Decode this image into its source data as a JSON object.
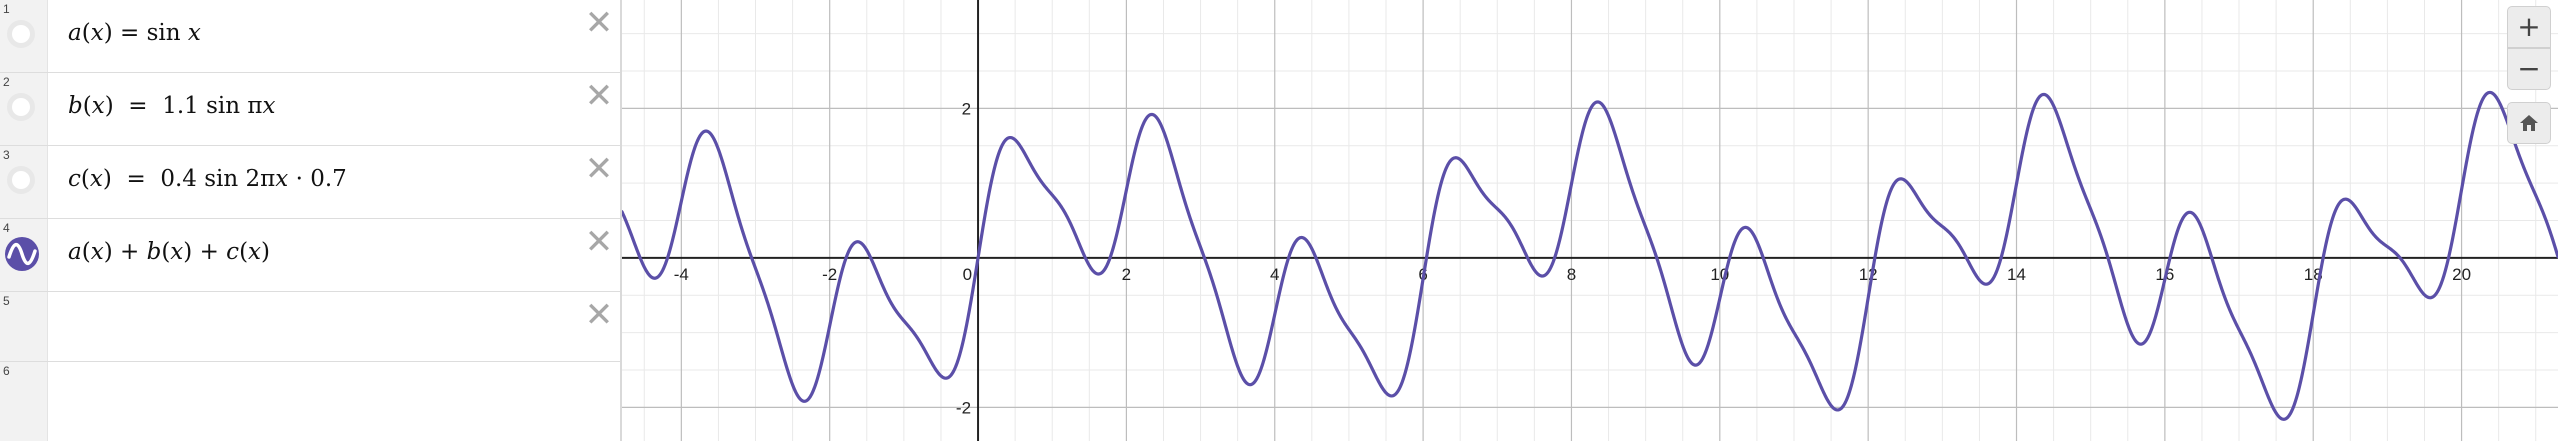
{
  "expressions": [
    {
      "index": "1",
      "a": "a",
      "b": "(",
      "c": "x",
      "d": ")",
      "e": " = sin ",
      "f": "x"
    },
    {
      "index": "2",
      "a": "b",
      "b": "(",
      "c": "x",
      "d": ")",
      "e": "  =  1.1 sin π",
      "f": "x"
    },
    {
      "index": "3",
      "a": "c",
      "b": "(",
      "c": "x",
      "d": ")",
      "e": "  =  0.4 sin 2π",
      "f": "x",
      "g": " · 0.7"
    },
    {
      "index": "4",
      "parts": [
        "a",
        "(",
        "x",
        ")",
        " + ",
        "b",
        "(",
        "x",
        ")",
        " + ",
        "c",
        "(",
        "x",
        ")"
      ]
    },
    {
      "index": "5"
    },
    {
      "index": "6"
    }
  ],
  "delete_icon": "close-icon",
  "zoom": {
    "in_label": "+",
    "out_label": "−",
    "home_icon": "home-icon"
  },
  "colors": {
    "curve": "#5b4fa8",
    "grid_major": "#bdbdbd",
    "grid_minor": "#e9e9e9",
    "axis": "#222222"
  },
  "chart_data": {
    "type": "line",
    "title": "",
    "xlabel": "",
    "ylabel": "",
    "xlim": [
      -4.8,
      21.3
    ],
    "ylim": [
      -2.45,
      3.45
    ],
    "x_ticks": [
      "-4",
      "-2",
      "0",
      "2",
      "4",
      "6",
      "8",
      "10",
      "12",
      "14",
      "16",
      "18",
      "20"
    ],
    "y_ticks": [
      "2",
      "-2"
    ],
    "grid": true,
    "series": [
      {
        "expression": "sin(x) + 1.1 sin(πx) + 0.4 sin(2πx)·0.7",
        "color": "#5b4fa8"
      }
    ]
  }
}
